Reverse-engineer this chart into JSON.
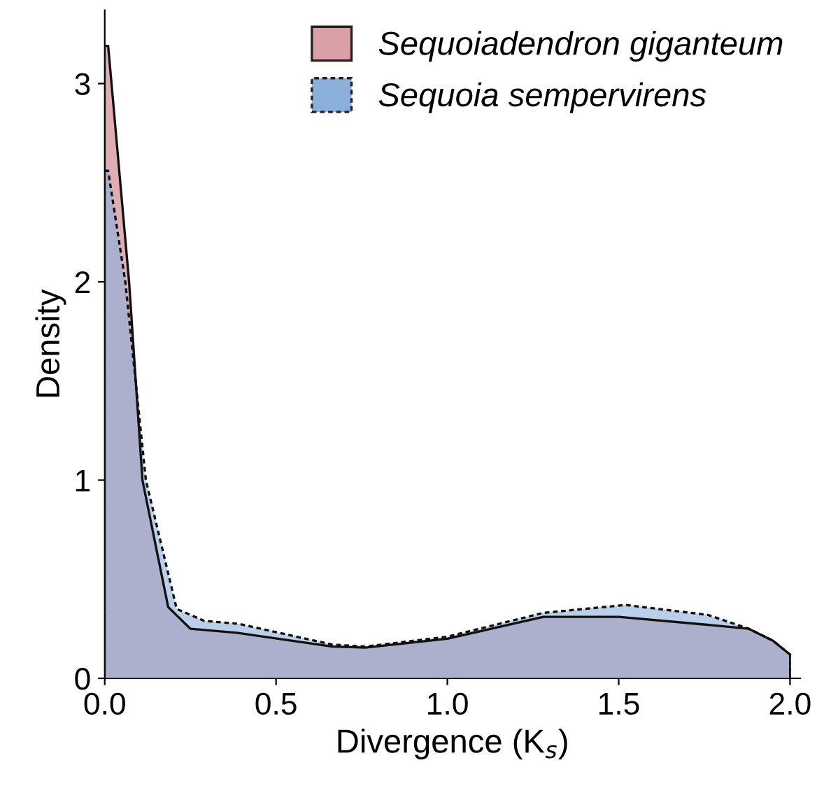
{
  "chart_data": {
    "type": "area",
    "xlabel": "Divergence (K$_{s}$)",
    "ylabel": "Density",
    "series": [
      {
        "name": "Sequoiadendron giganteum",
        "color": "#d9a0a8",
        "line_style": "solid",
        "x": [
          0.0,
          0.01,
          0.071,
          0.11,
          0.185,
          0.25,
          0.385,
          0.665,
          0.76,
          1.0,
          1.28,
          1.5,
          1.76,
          1.88,
          1.95,
          2.0
        ],
        "values": [
          3.19,
          3.19,
          2.0,
          1.0,
          0.36,
          0.25,
          0.23,
          0.16,
          0.155,
          0.2,
          0.31,
          0.31,
          0.27,
          0.25,
          0.19,
          0.12
        ]
      },
      {
        "name": "Sequoia sempervirens",
        "color": "#8cb0dc",
        "line_style": "dashed",
        "x": [
          0.0,
          0.01,
          0.06,
          0.12,
          0.21,
          0.29,
          0.39,
          0.665,
          0.76,
          1.0,
          1.28,
          1.52,
          1.76,
          1.88,
          1.95,
          2.0
        ],
        "values": [
          2.56,
          2.56,
          2.0,
          1.0,
          0.35,
          0.29,
          0.275,
          0.17,
          0.16,
          0.21,
          0.33,
          0.37,
          0.32,
          0.25,
          0.19,
          0.12
        ]
      }
    ],
    "xlim": [
      0.0,
      2.03
    ],
    "ylim": [
      0.0,
      3.37
    ],
    "xticks": [
      {
        "value": 0.0,
        "label": "0.0"
      },
      {
        "value": 0.5,
        "label": "0.5"
      },
      {
        "value": 1.0,
        "label": "1.0"
      },
      {
        "value": 1.5,
        "label": "1.5"
      },
      {
        "value": 2.0,
        "label": "2.0"
      }
    ],
    "yticks": [
      0,
      1,
      2,
      3
    ],
    "legend": "top right",
    "grid": false
  }
}
